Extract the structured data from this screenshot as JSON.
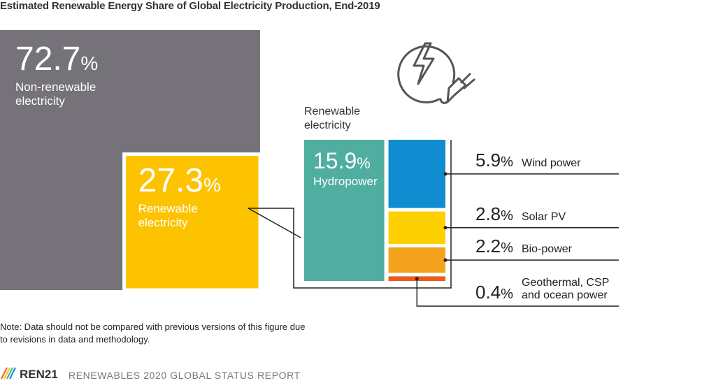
{
  "chart_data": {
    "type": "treemap",
    "title": "Estimated Renewable Energy Share of Global Electricity Production, End-2019",
    "unit": "%",
    "categories": [
      "Non-renewable electricity",
      "Renewable electricity"
    ],
    "values": [
      72.7,
      27.3
    ],
    "colors": [
      "#767279",
      "#fdc300"
    ],
    "breakdown": {
      "title": "Renewable electricity",
      "categories": [
        "Hydropower",
        "Wind power",
        "Solar PV",
        "Bio-power",
        "Geothermal, CSP and ocean power"
      ],
      "values": [
        15.9,
        5.9,
        2.8,
        2.2,
        0.4
      ],
      "colors": [
        "#4fae9f",
        "#0f8dd0",
        "#fdd100",
        "#f4a31f",
        "#e85e1c"
      ]
    },
    "note": "Note: Data should not be compared with previous versions of this figure due to revisions in data and methodology.",
    "footer": {
      "brand": "REN21",
      "report": "RENEWABLES 2020 GLOBAL STATUS REPORT"
    }
  }
}
